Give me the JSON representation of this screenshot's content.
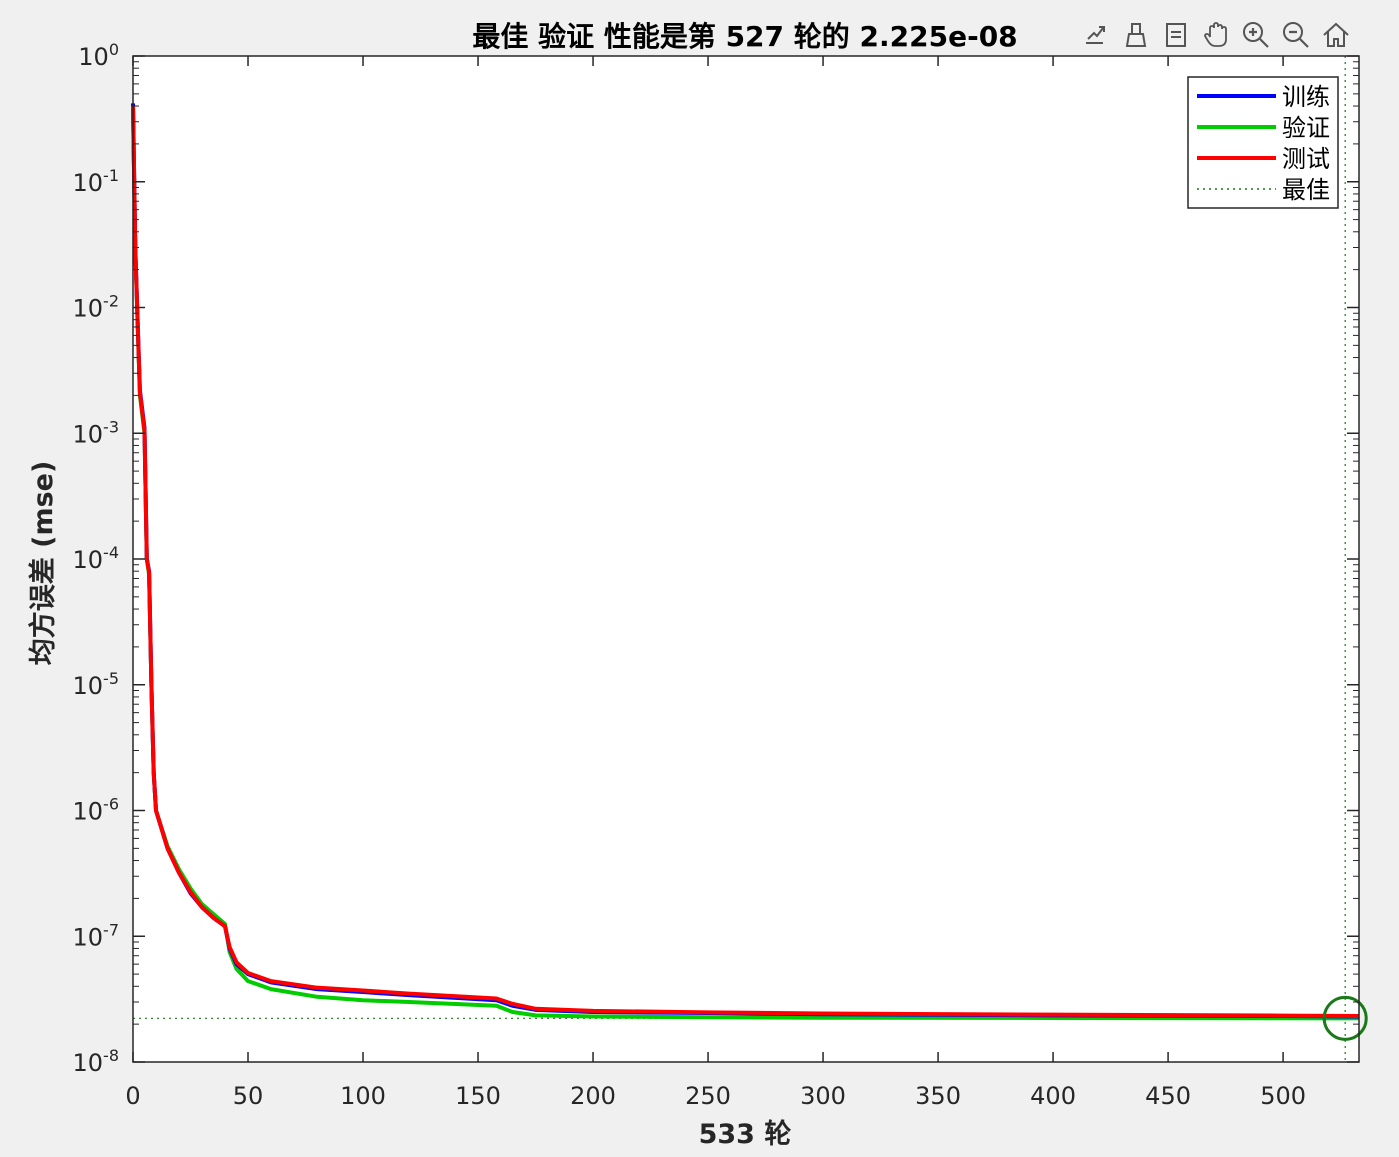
{
  "toolbar": {
    "icons": [
      "export-icon",
      "brush-icon",
      "datatips-icon",
      "pan-icon",
      "zoom-in-icon",
      "zoom-out-icon",
      "home-icon"
    ]
  },
  "colors": {
    "train": "#0000ff",
    "validation": "#00cc00",
    "test": "#ff0000",
    "best": "#1a7a1a",
    "axis": "#262626"
  },
  "chart_data": {
    "type": "line",
    "title": "最佳 验证 性能是第 527 轮的 2.225e-08",
    "xlabel": "533 轮",
    "ylabel": "均方误差 (mse)",
    "xlim": [
      0,
      533
    ],
    "ylim": [
      1e-08,
      1
    ],
    "yscale": "log",
    "xticks": [
      0,
      50,
      100,
      150,
      200,
      250,
      300,
      350,
      400,
      450,
      500
    ],
    "yticks": [
      {
        "value": 1,
        "base": "10",
        "exp": "0"
      },
      {
        "value": 0.1,
        "base": "10",
        "exp": "-1"
      },
      {
        "value": 0.01,
        "base": "10",
        "exp": "-2"
      },
      {
        "value": 0.001,
        "base": "10",
        "exp": "-3"
      },
      {
        "value": 0.0001,
        "base": "10",
        "exp": "-4"
      },
      {
        "value": 1e-05,
        "base": "10",
        "exp": "-5"
      },
      {
        "value": 1e-06,
        "base": "10",
        "exp": "-6"
      },
      {
        "value": 1e-07,
        "base": "10",
        "exp": "-7"
      },
      {
        "value": 1e-08,
        "base": "10",
        "exp": "-8"
      }
    ],
    "grid": false,
    "legend_position": "top-right",
    "series": [
      {
        "name": "训练",
        "color_key": "train",
        "points": [
          [
            0,
            0.42
          ],
          [
            1,
            0.03
          ],
          [
            2,
            0.008
          ],
          [
            3,
            0.0022
          ],
          [
            5,
            0.0011
          ],
          [
            6,
            0.0001
          ],
          [
            7,
            8e-05
          ],
          [
            8,
            1e-05
          ],
          [
            9,
            2e-06
          ],
          [
            10,
            1e-06
          ],
          [
            15,
            5e-07
          ],
          [
            20,
            3.2e-07
          ],
          [
            25,
            2.2e-07
          ],
          [
            30,
            1.7e-07
          ],
          [
            35,
            1.4e-07
          ],
          [
            40,
            1.2e-07
          ],
          [
            42,
            8e-08
          ],
          [
            45,
            6e-08
          ],
          [
            50,
            5e-08
          ],
          [
            60,
            4.3e-08
          ],
          [
            80,
            3.8e-08
          ],
          [
            100,
            3.6e-08
          ],
          [
            120,
            3.4e-08
          ],
          [
            158,
            3.1e-08
          ],
          [
            165,
            2.8e-08
          ],
          [
            175,
            2.6e-08
          ],
          [
            200,
            2.5e-08
          ],
          [
            250,
            2.45e-08
          ],
          [
            300,
            2.4e-08
          ],
          [
            400,
            2.35e-08
          ],
          [
            500,
            2.32e-08
          ],
          [
            533,
            2.3e-08
          ]
        ]
      },
      {
        "name": "验证",
        "color_key": "validation",
        "points": [
          [
            0,
            0.38
          ],
          [
            1,
            0.028
          ],
          [
            2,
            0.0075
          ],
          [
            3,
            0.002
          ],
          [
            5,
            0.001
          ],
          [
            6,
            0.0001
          ],
          [
            7,
            7.5e-05
          ],
          [
            8,
            1e-05
          ],
          [
            9,
            2e-06
          ],
          [
            10,
            1e-06
          ],
          [
            15,
            5.2e-07
          ],
          [
            20,
            3.4e-07
          ],
          [
            25,
            2.4e-07
          ],
          [
            30,
            1.8e-07
          ],
          [
            35,
            1.5e-07
          ],
          [
            40,
            1.25e-07
          ],
          [
            42,
            7.5e-08
          ],
          [
            45,
            5.5e-08
          ],
          [
            50,
            4.4e-08
          ],
          [
            60,
            3.8e-08
          ],
          [
            80,
            3.3e-08
          ],
          [
            100,
            3.1e-08
          ],
          [
            120,
            3e-08
          ],
          [
            158,
            2.8e-08
          ],
          [
            165,
            2.5e-08
          ],
          [
            175,
            2.35e-08
          ],
          [
            200,
            2.3e-08
          ],
          [
            250,
            2.27e-08
          ],
          [
            300,
            2.25e-08
          ],
          [
            400,
            2.24e-08
          ],
          [
            527,
            2.225e-08
          ],
          [
            533,
            2.23e-08
          ]
        ]
      },
      {
        "name": "测试",
        "color_key": "test",
        "points": [
          [
            0,
            0.4
          ],
          [
            1,
            0.029
          ],
          [
            2,
            0.0078
          ],
          [
            3,
            0.0021
          ],
          [
            5,
            0.00105
          ],
          [
            6,
            0.0001
          ],
          [
            7,
            7.8e-05
          ],
          [
            8,
            1e-05
          ],
          [
            9,
            2e-06
          ],
          [
            10,
            1e-06
          ],
          [
            15,
            5e-07
          ],
          [
            20,
            3.2e-07
          ],
          [
            25,
            2.25e-07
          ],
          [
            30,
            1.7e-07
          ],
          [
            35,
            1.4e-07
          ],
          [
            40,
            1.2e-07
          ],
          [
            42,
            8.2e-08
          ],
          [
            45,
            6.2e-08
          ],
          [
            50,
            5.1e-08
          ],
          [
            60,
            4.4e-08
          ],
          [
            80,
            3.9e-08
          ],
          [
            100,
            3.7e-08
          ],
          [
            120,
            3.5e-08
          ],
          [
            158,
            3.2e-08
          ],
          [
            165,
            2.9e-08
          ],
          [
            175,
            2.65e-08
          ],
          [
            200,
            2.55e-08
          ],
          [
            250,
            2.48e-08
          ],
          [
            300,
            2.43e-08
          ],
          [
            400,
            2.38e-08
          ],
          [
            500,
            2.34e-08
          ],
          [
            533,
            2.32e-08
          ]
        ]
      }
    ],
    "legend": [
      {
        "label": "训练",
        "color_key": "train",
        "style": "solid"
      },
      {
        "label": "验证",
        "color_key": "validation",
        "style": "solid"
      },
      {
        "label": "测试",
        "color_key": "test",
        "style": "solid"
      },
      {
        "label": "最佳",
        "color_key": "best",
        "style": "dotted"
      }
    ],
    "best": {
      "epoch": 527,
      "value": 2.225e-08
    }
  }
}
